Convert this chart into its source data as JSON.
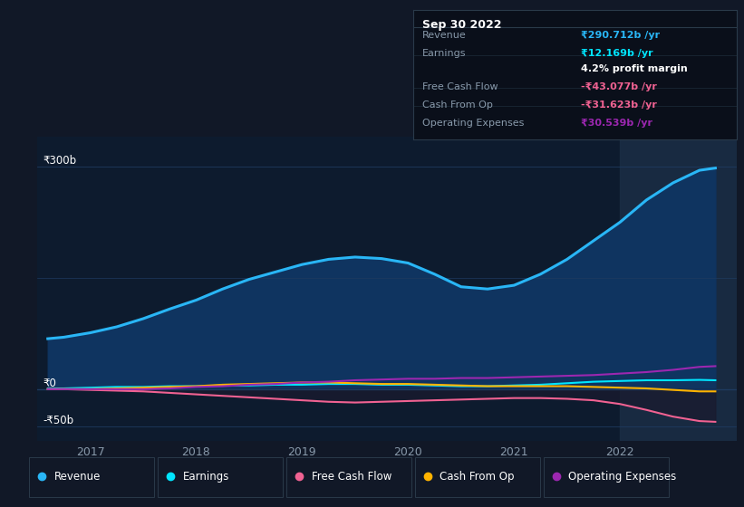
{
  "background_color": "#111827",
  "plot_bg_color": "#0d1b2e",
  "tooltip_bg_color": "#0a0f1a",
  "x_years": [
    2016.6,
    2016.75,
    2017.0,
    2017.25,
    2017.5,
    2017.75,
    2018.0,
    2018.25,
    2018.5,
    2018.75,
    2019.0,
    2019.25,
    2019.5,
    2019.75,
    2020.0,
    2020.25,
    2020.5,
    2020.75,
    2021.0,
    2021.25,
    2021.5,
    2021.75,
    2022.0,
    2022.25,
    2022.5,
    2022.75,
    2022.9
  ],
  "revenue": [
    68,
    70,
    76,
    84,
    95,
    108,
    120,
    135,
    148,
    158,
    168,
    175,
    178,
    176,
    170,
    155,
    138,
    135,
    140,
    155,
    175,
    200,
    225,
    255,
    278,
    295,
    298
  ],
  "earnings": [
    1,
    1,
    2,
    3,
    3,
    4,
    4,
    5,
    5,
    6,
    6,
    7,
    7,
    6,
    6,
    5,
    4,
    4,
    5,
    6,
    8,
    10,
    11,
    12,
    12,
    12.5,
    12
  ],
  "free_cash_flow": [
    0,
    0,
    -1,
    -2,
    -3,
    -5,
    -7,
    -9,
    -11,
    -13,
    -15,
    -17,
    -18,
    -17,
    -16,
    -15,
    -14,
    -13,
    -12,
    -12,
    -13,
    -15,
    -20,
    -28,
    -37,
    -43,
    -44
  ],
  "cash_from_op": [
    0,
    0,
    0,
    1,
    2,
    3,
    4,
    6,
    7,
    8,
    9,
    9,
    8,
    7,
    7,
    6,
    5,
    4,
    4,
    4,
    4,
    3,
    2,
    1,
    -1,
    -3,
    -3
  ],
  "operating_expenses": [
    0,
    0,
    0,
    0,
    0,
    1,
    3,
    4,
    6,
    7,
    9,
    10,
    12,
    13,
    14,
    14,
    15,
    15,
    16,
    17,
    18,
    19,
    21,
    23,
    26,
    30,
    31
  ],
  "revenue_color": "#29b6f6",
  "earnings_color": "#00e5ff",
  "free_cash_flow_color": "#f06292",
  "cash_from_op_color": "#ffb300",
  "operating_expenses_color": "#9c27b0",
  "fill_color": "#0f3460",
  "negative_fill_color": "#1a1a2e",
  "grid_color": "#1e3a5f",
  "text_color": "#ffffff",
  "dim_text_color": "#8899aa",
  "highlight_band_color": "#1a2d45",
  "legend_items": [
    {
      "label": "Revenue",
      "color": "#29b6f6"
    },
    {
      "label": "Earnings",
      "color": "#00e5ff"
    },
    {
      "label": "Free Cash Flow",
      "color": "#f06292"
    },
    {
      "label": "Cash From Op",
      "color": "#ffb300"
    },
    {
      "label": "Operating Expenses",
      "color": "#9c27b0"
    }
  ],
  "xlim": [
    2016.5,
    2023.1
  ],
  "ylim": [
    -70,
    340
  ],
  "x_ticks": [
    2017,
    2018,
    2019,
    2020,
    2021,
    2022
  ],
  "y_tick_labels": [
    "-₹50b",
    "₹0",
    "₹300b"
  ],
  "y_tick_vals": [
    -50,
    0,
    300
  ],
  "highlight_x_start": 2022.0,
  "highlight_x_end": 2023.1
}
